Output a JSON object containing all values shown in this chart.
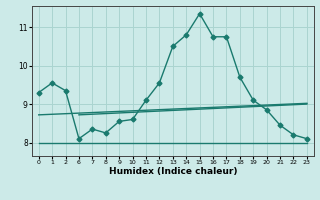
{
  "background_color": "#cceae8",
  "grid_color": "#aad4d0",
  "line_color": "#1a7a6e",
  "xlabel": "Humidex (Indice chaleur)",
  "xlim": [
    -0.5,
    20.5
  ],
  "ylim": [
    7.65,
    11.55
  ],
  "yticks": [
    8,
    9,
    10,
    11
  ],
  "xtick_labels": [
    "0",
    "1",
    "2",
    "6",
    "7",
    "8",
    "9",
    "10",
    "11",
    "12",
    "13",
    "14",
    "15",
    "16",
    "17",
    "18",
    "19",
    "20",
    "21",
    "22",
    "23"
  ],
  "line1_x": [
    0,
    1,
    2,
    3,
    4,
    5,
    6,
    7,
    8,
    9,
    10,
    11,
    12,
    13,
    14,
    15,
    16,
    17,
    18,
    19,
    20
  ],
  "line1_y": [
    9.3,
    9.55,
    9.35,
    8.1,
    8.35,
    8.25,
    8.55,
    8.6,
    9.1,
    9.55,
    10.5,
    10.8,
    11.35,
    10.75,
    10.75,
    9.7,
    9.1,
    8.85,
    8.45,
    8.2,
    8.1
  ],
  "line2_x": [
    0,
    20
  ],
  "line2_y": [
    8.0,
    8.0
  ],
  "line3_x": [
    0,
    20
  ],
  "line3_y": [
    8.72,
    9.02
  ],
  "line4_x": [
    3,
    20
  ],
  "line4_y": [
    8.72,
    9.0
  ]
}
